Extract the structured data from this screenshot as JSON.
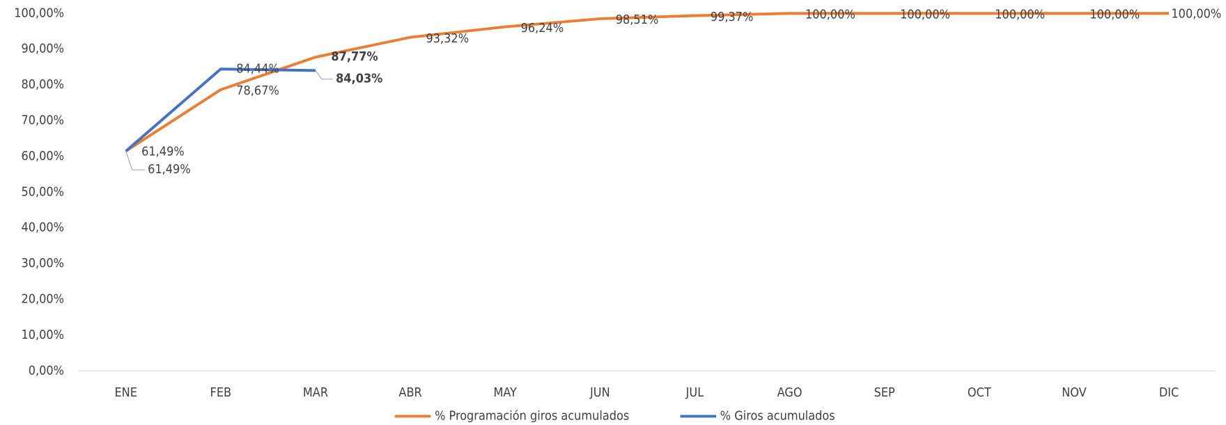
{
  "chart_data": {
    "type": "line",
    "categories": [
      "ENE",
      "FEB",
      "MAR",
      "ABR",
      "MAY",
      "JUN",
      "JUL",
      "AGO",
      "SEP",
      "OCT",
      "NOV",
      "DIC"
    ],
    "series": [
      {
        "name": "% Programación giros acumulados",
        "color": "#ED7D31",
        "values": [
          61.49,
          78.67,
          87.77,
          93.32,
          96.24,
          98.51,
          99.37,
          100,
          100,
          100,
          100,
          100
        ],
        "value_labels": [
          "61,49%",
          "78,67%",
          "87,77%",
          "93,32%",
          "96,24%",
          "98,51%",
          "99,37%",
          "100,00%",
          "100,00%",
          "100,00%",
          "100,00%",
          "100,00%"
        ]
      },
      {
        "name": "% Giros acumulados",
        "color": "#4472C4",
        "values": [
          61.49,
          84.44,
          84.03,
          null,
          null,
          null,
          null,
          null,
          null,
          null,
          null,
          null
        ],
        "value_labels": [
          "61,49%",
          "84,44%",
          "84,03%",
          null,
          null,
          null,
          null,
          null,
          null,
          null,
          null,
          null
        ]
      }
    ],
    "ylim": [
      0,
      100
    ],
    "yticks": [
      {
        "value": 0,
        "label": "0,00%"
      },
      {
        "value": 10,
        "label": "10,00%"
      },
      {
        "value": 20,
        "label": "20,00%"
      },
      {
        "value": 30,
        "label": "30,00%"
      },
      {
        "value": 40,
        "label": "40,00%"
      },
      {
        "value": 50,
        "label": "50,00%"
      },
      {
        "value": 60,
        "label": "60,00%"
      },
      {
        "value": 70,
        "label": "70,00%"
      },
      {
        "value": 80,
        "label": "80,00%"
      },
      {
        "value": 90,
        "label": "90,00%"
      },
      {
        "value": 100,
        "label": "100,00%"
      }
    ],
    "grid": "x",
    "legend": "bottom"
  }
}
